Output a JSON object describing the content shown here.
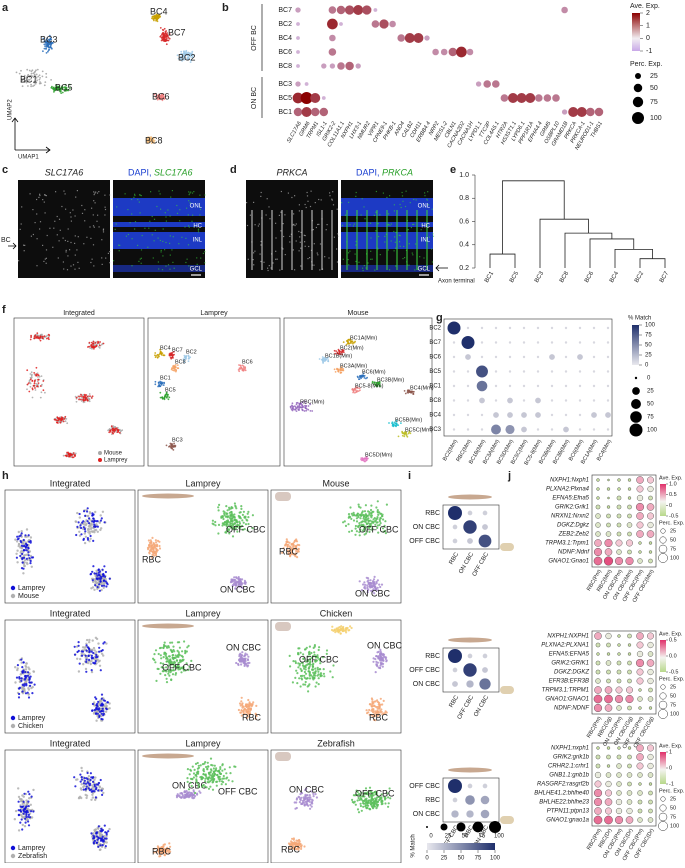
{
  "a": {
    "label": "a",
    "clusters": [
      "BC3",
      "BC1",
      "BC5",
      "BC4",
      "BC7",
      "BC2",
      "BC6",
      "BC8"
    ],
    "x_axis": "UMAP1",
    "y_axis": "UMAP2"
  },
  "b": {
    "label": "b",
    "rows": [
      "BC7",
      "BC2",
      "BC4",
      "BC6",
      "BC8",
      "BC3",
      "BC5",
      "BC1"
    ],
    "groups": [
      "OFF BC",
      "ON BC"
    ],
    "genes": [
      "SLC17A6",
      "GRM6",
      "TRPM1",
      "ISL1-1",
      "GRIK2-2",
      "COL11A1.1",
      "NXPH1",
      "LHX3-1",
      "NMUR2",
      "VIPR1",
      "CPNE9-1",
      "PHKB-1",
      "ANO4",
      "CALB2",
      "CDH11",
      "ERBB4.4",
      "NRP2",
      "MEIS1-2",
      "CBLN1",
      "CACNA2D2",
      "CACNA1H",
      "LYPD1.1",
      "TTC3P",
      "COL4A5.1",
      "HTR2A",
      "HS3ST1.1",
      "LYPD6.1",
      "PPP1R1A",
      "EPHA4.4",
      "GRM5",
      "OSBPL10",
      "GRAMD1B",
      "PRKCA",
      "PRKCA-1",
      "NEUROD1-1",
      "THBS1"
    ],
    "perc": [
      [
        20,
        0,
        0,
        0,
        40,
        50,
        60,
        70,
        60,
        10,
        0,
        0,
        0,
        0,
        0,
        0,
        0,
        0,
        0,
        0,
        0,
        0,
        0,
        0,
        0,
        0,
        0,
        0,
        0,
        0,
        0,
        30,
        0,
        0,
        0,
        0
      ],
      [
        10,
        0,
        0,
        0,
        80,
        10,
        0,
        0,
        0,
        40,
        60,
        30,
        0,
        0,
        0,
        0,
        0,
        0,
        0,
        0,
        0,
        0,
        0,
        0,
        0,
        0,
        0,
        0,
        0,
        0,
        0,
        0,
        0,
        0,
        0,
        0
      ],
      [
        10,
        0,
        0,
        0,
        30,
        0,
        0,
        0,
        0,
        0,
        0,
        0,
        40,
        70,
        70,
        20,
        0,
        0,
        0,
        0,
        0,
        0,
        0,
        0,
        0,
        0,
        0,
        0,
        0,
        0,
        0,
        0,
        0,
        0,
        0,
        0
      ],
      [
        10,
        0,
        0,
        0,
        40,
        0,
        0,
        0,
        0,
        0,
        0,
        0,
        0,
        0,
        0,
        0,
        30,
        30,
        50,
        80,
        30,
        0,
        0,
        0,
        0,
        0,
        0,
        0,
        0,
        0,
        0,
        0,
        0,
        0,
        0,
        0
      ],
      [
        10,
        0,
        0,
        20,
        20,
        40,
        50,
        20,
        0,
        0,
        0,
        0,
        0,
        0,
        0,
        0,
        0,
        0,
        0,
        0,
        0,
        0,
        0,
        0,
        0,
        0,
        0,
        0,
        0,
        0,
        0,
        0,
        0,
        0,
        0,
        0
      ],
      [
        20,
        10,
        0,
        0,
        0,
        0,
        0,
        0,
        0,
        0,
        0,
        0,
        0,
        0,
        0,
        0,
        0,
        0,
        0,
        0,
        0,
        20,
        40,
        40,
        0,
        0,
        0,
        0,
        0,
        0,
        0,
        0,
        0,
        0,
        0,
        0
      ],
      [
        80,
        100,
        70,
        10,
        0,
        0,
        0,
        0,
        0,
        0,
        0,
        0,
        0,
        0,
        0,
        0,
        0,
        0,
        0,
        0,
        0,
        0,
        0,
        0,
        40,
        70,
        70,
        70,
        40,
        40,
        40,
        0,
        0,
        0,
        0,
        0
      ],
      [
        50,
        70,
        50,
        50,
        0,
        0,
        0,
        0,
        0,
        0,
        0,
        0,
        0,
        0,
        0,
        0,
        0,
        0,
        0,
        0,
        0,
        0,
        0,
        0,
        0,
        0,
        0,
        0,
        0,
        0,
        0,
        20,
        70,
        70,
        50,
        50
      ]
    ],
    "exp_title": "Ave. Exp.",
    "exp_ticks": [
      2,
      1,
      0,
      -1
    ],
    "perc_title": "Perc. Exp.",
    "perc_ticks": [
      25,
      50,
      75,
      100
    ]
  },
  "c": {
    "label": "c",
    "title": "SLC17A6",
    "title2": [
      "DAPI,",
      "SLC17A6"
    ],
    "layers": [
      "ONL",
      "HC",
      "INL",
      "GCL"
    ],
    "arrow": "BC"
  },
  "d": {
    "label": "d",
    "title": "PRKCA",
    "title2": [
      "DAPI,",
      "PRKCA"
    ],
    "layers": [
      "ONL",
      "HC",
      "INL",
      "GCL"
    ],
    "arrow": "Axon terminal"
  },
  "e": {
    "label": "e",
    "leaves": [
      "BC1",
      "BC5",
      "BC3",
      "BC8",
      "BC6",
      "BC4",
      "BC2",
      "BC7"
    ],
    "merge_heights": [
      0.32,
      0.28,
      0.36,
      0.45,
      0.5,
      0.62,
      0.95
    ],
    "ylim": [
      0.2,
      1
    ],
    "yticks": [
      0.2,
      0.4,
      0.6,
      0.8,
      {
        "value": 1,
        "label": "1.0"
      }
    ]
  },
  "f": {
    "label": "f",
    "panels": [
      "Integrated",
      "Lamprey",
      "Mouse"
    ],
    "legend": [
      "Mouse",
      "Lamprey"
    ],
    "lamprey_labels": [
      "BC4",
      "BC7",
      "BC2",
      "BC8",
      "BC1",
      "BC5",
      "BC6",
      "BC3"
    ],
    "mouse_labels": [
      "BC1A(Mm)",
      "BC2(Mm)",
      "BC1B(Mm)",
      "BC3A(Mm)",
      "BC6(Mm)",
      "BC3B(Mm)",
      "BC5-8(Mm)",
      "BC4(Mm)",
      "RBC(Mm)",
      "BC5B(Mm)",
      "BC5C(Mm)",
      "BC5D(Mm)"
    ]
  },
  "g": {
    "label": "g",
    "rows": [
      "BC2",
      "BC7",
      "BC6",
      "BC5",
      "BC1",
      "BC8",
      "BC4",
      "BC3"
    ],
    "cols": [
      "BC2(Mm)",
      "RBC(Mm)",
      "BC1B(Mm)",
      "BC3A(Mm)",
      "BC5D(Mm)",
      "BC5C(Mm)",
      "BC5-8(Mm)",
      "BC5B(Mm)",
      "BC3B(Mm)",
      "BC6(Mm)",
      "BC1A(Mm)",
      "BC4(Mm)"
    ],
    "match": [
      [
        100,
        0,
        0,
        0,
        0,
        0,
        0,
        0,
        0,
        0,
        0,
        0
      ],
      [
        0,
        100,
        0,
        0,
        0,
        0,
        0,
        0,
        0,
        0,
        0,
        0
      ],
      [
        0,
        10,
        0,
        0,
        0,
        0,
        0,
        10,
        0,
        10,
        0,
        0
      ],
      [
        0,
        0,
        80,
        0,
        0,
        0,
        0,
        0,
        0,
        0,
        0,
        0
      ],
      [
        0,
        0,
        60,
        0,
        0,
        0,
        0,
        0,
        0,
        0,
        0,
        0
      ],
      [
        0,
        0,
        10,
        0,
        10,
        0,
        10,
        0,
        0,
        0,
        0,
        0
      ],
      [
        0,
        0,
        0,
        10,
        10,
        10,
        10,
        0,
        0,
        0,
        10,
        10
      ],
      [
        0,
        0,
        0,
        50,
        40,
        10,
        0,
        0,
        10,
        0,
        0,
        0
      ]
    ],
    "legend_title": "% Match",
    "color_ticks": [
      100,
      75,
      50,
      25,
      0
    ],
    "size_ticks": [
      0,
      25,
      50,
      75,
      100
    ]
  },
  "h": {
    "label": "h",
    "rows": [
      {
        "panels": [
          "Integrated",
          "Lamprey",
          "Mouse"
        ],
        "legend": [
          "Lamprey",
          "Mouse"
        ],
        "types": [
          "OFF CBC",
          "RBC",
          "ON CBC"
        ]
      },
      {
        "panels": [
          "Integrated",
          "Lamprey",
          "Chicken"
        ],
        "legend": [
          "Lamprey",
          "Chicken"
        ],
        "types": [
          "OFF CBC",
          "ON CBC",
          "RBC"
        ]
      },
      {
        "panels": [
          "Integrated",
          "Lamprey",
          "Zebrafish"
        ],
        "legend": [
          "Lamprey",
          "Zebrafish"
        ],
        "types": [
          "ON CBC",
          "OFF CBC",
          "RBC"
        ]
      }
    ]
  },
  "i": {
    "label": "i",
    "matrices": [
      {
        "rows": [
          "RBC",
          "ON CBC",
          "OFF CBC"
        ],
        "cols": [
          "RBC",
          "ON CBC",
          "OFF CBC"
        ],
        "match": [
          [
            100,
            5,
            5
          ],
          [
            5,
            90,
            10
          ],
          [
            5,
            10,
            80
          ]
        ]
      },
      {
        "rows": [
          "RBC",
          "OFF CBC",
          "ON CBC"
        ],
        "cols": [
          "RBC",
          "OFF CBC",
          "ON CBC"
        ],
        "match": [
          [
            100,
            5,
            5
          ],
          [
            5,
            90,
            10
          ],
          [
            10,
            20,
            60
          ]
        ]
      },
      {
        "rows": [
          "OFF CBC",
          "RBC",
          "ON CBC"
        ],
        "cols": [
          "OFF CBC",
          "RBC",
          "ON CBC"
        ],
        "match": [
          [
            100,
            5,
            5
          ],
          [
            5,
            40,
            30
          ],
          [
            20,
            20,
            30
          ]
        ]
      }
    ],
    "legend_title": "% Match",
    "size_ticks": [
      0,
      25,
      50,
      75,
      100
    ],
    "color_ticks": [
      0,
      25,
      50,
      75,
      100
    ]
  },
  "j": {
    "label": "j",
    "exp_title": "Ave. Exp.",
    "perc_title": "Perc. Exp.",
    "plots": [
      {
        "genes": [
          "NXPH1:Nxph1",
          "PLXNA2:Plxna4",
          "EFNA5:Efna5",
          "GRIK2:Grik1",
          "NRXN1:Nrxn2",
          "DGKZ:Dgkz",
          "ZEB2:Zeb2",
          "TRPM3.1:Trpm1",
          "NDNF:Ndnf",
          "GNAO1:Gnao1"
        ],
        "cols": [
          "RBC(Pm)",
          "RBC(Mm)",
          "ON CBC(Pm)",
          "ON CBC(Mm)",
          "OFF CBC(Pm)",
          "OFF CBC(Mm)"
        ],
        "perc": [
          [
            10,
            5,
            10,
            10,
            60,
            50
          ],
          [
            10,
            10,
            10,
            10,
            50,
            40
          ],
          [
            10,
            5,
            20,
            10,
            40,
            20
          ],
          [
            20,
            10,
            20,
            20,
            70,
            60
          ],
          [
            30,
            20,
            20,
            20,
            60,
            50
          ],
          [
            30,
            20,
            20,
            30,
            50,
            40
          ],
          [
            30,
            30,
            20,
            20,
            60,
            60
          ],
          [
            60,
            70,
            50,
            50,
            10,
            10
          ],
          [
            70,
            60,
            30,
            20,
            10,
            10
          ],
          [
            80,
            90,
            70,
            70,
            30,
            20
          ]
        ],
        "exp_ticks": [
          {
            "value": 1,
            "label": "1.0"
          },
          0.5,
          0,
          -0.5
        ],
        "perc_ticks": [
          25,
          50,
          75,
          100
        ]
      },
      {
        "genes": [
          "NXPH1:NXPH1",
          "PLXNA2:PLXNA1",
          "EFNA5:EFNA5",
          "GRIK2:GRIK1",
          "DGKZ:DGKZ",
          "EFR3B:EFR3B",
          "TRPM3.1:TRPM1",
          "GNAO1:GNAO1",
          "NDNF:NDNF"
        ],
        "cols": [
          "RBC(Pm)",
          "RBC(Gg)",
          "ON CBC(Pm)",
          "ON CBC(Gg)",
          "OFF CBC(Pm)",
          "OFF CBC(Gg)"
        ],
        "perc": [
          [
            60,
            40,
            10,
            20,
            60,
            50
          ],
          [
            20,
            20,
            10,
            10,
            50,
            40
          ],
          [
            10,
            10,
            10,
            10,
            40,
            30
          ],
          [
            20,
            30,
            20,
            20,
            70,
            60
          ],
          [
            20,
            20,
            20,
            20,
            50,
            40
          ],
          [
            30,
            20,
            20,
            20,
            50,
            40
          ],
          [
            60,
            60,
            50,
            50,
            10,
            20
          ],
          [
            80,
            80,
            70,
            70,
            30,
            30
          ],
          [
            70,
            60,
            30,
            20,
            10,
            10
          ]
        ],
        "exp_ticks": [
          0.5,
          {
            "value": 0,
            "label": "0.0"
          },
          -0.5
        ],
        "perc_ticks": [
          25,
          50,
          75,
          100
        ]
      },
      {
        "genes": [
          "NXPH1:nxph1",
          "GRIK2:grik1b",
          "CRHR2.1:crhr1",
          "GNB1.1:gnb1b",
          "RASGRF2:rasgrf2b",
          "BHLHE41.2:bhlhe40",
          "BHLHE22:bhlhe23",
          "PTPN11:ptpn13",
          "GNAO1:gnao1a"
        ],
        "cols": [
          "RBC(Pm)",
          "RBC(Dr)",
          "ON CBC(Pm)",
          "ON CBC(Dr)",
          "OFF CBC(Pm)",
          "OFF CBC(Dr)"
        ],
        "perc": [
          [
            10,
            10,
            10,
            10,
            60,
            50
          ],
          [
            20,
            20,
            20,
            20,
            60,
            40
          ],
          [
            20,
            10,
            30,
            20,
            50,
            40
          ],
          [
            40,
            30,
            30,
            30,
            30,
            30
          ],
          [
            50,
            40,
            30,
            20,
            10,
            10
          ],
          [
            70,
            50,
            30,
            30,
            30,
            20
          ],
          [
            70,
            60,
            40,
            30,
            20,
            20
          ],
          [
            60,
            50,
            40,
            40,
            20,
            20
          ],
          [
            80,
            80,
            70,
            60,
            30,
            30
          ]
        ],
        "exp_ticks": [
          1,
          0,
          -1
        ],
        "perc_ticks": [
          25,
          50,
          75,
          100
        ]
      }
    ]
  }
}
